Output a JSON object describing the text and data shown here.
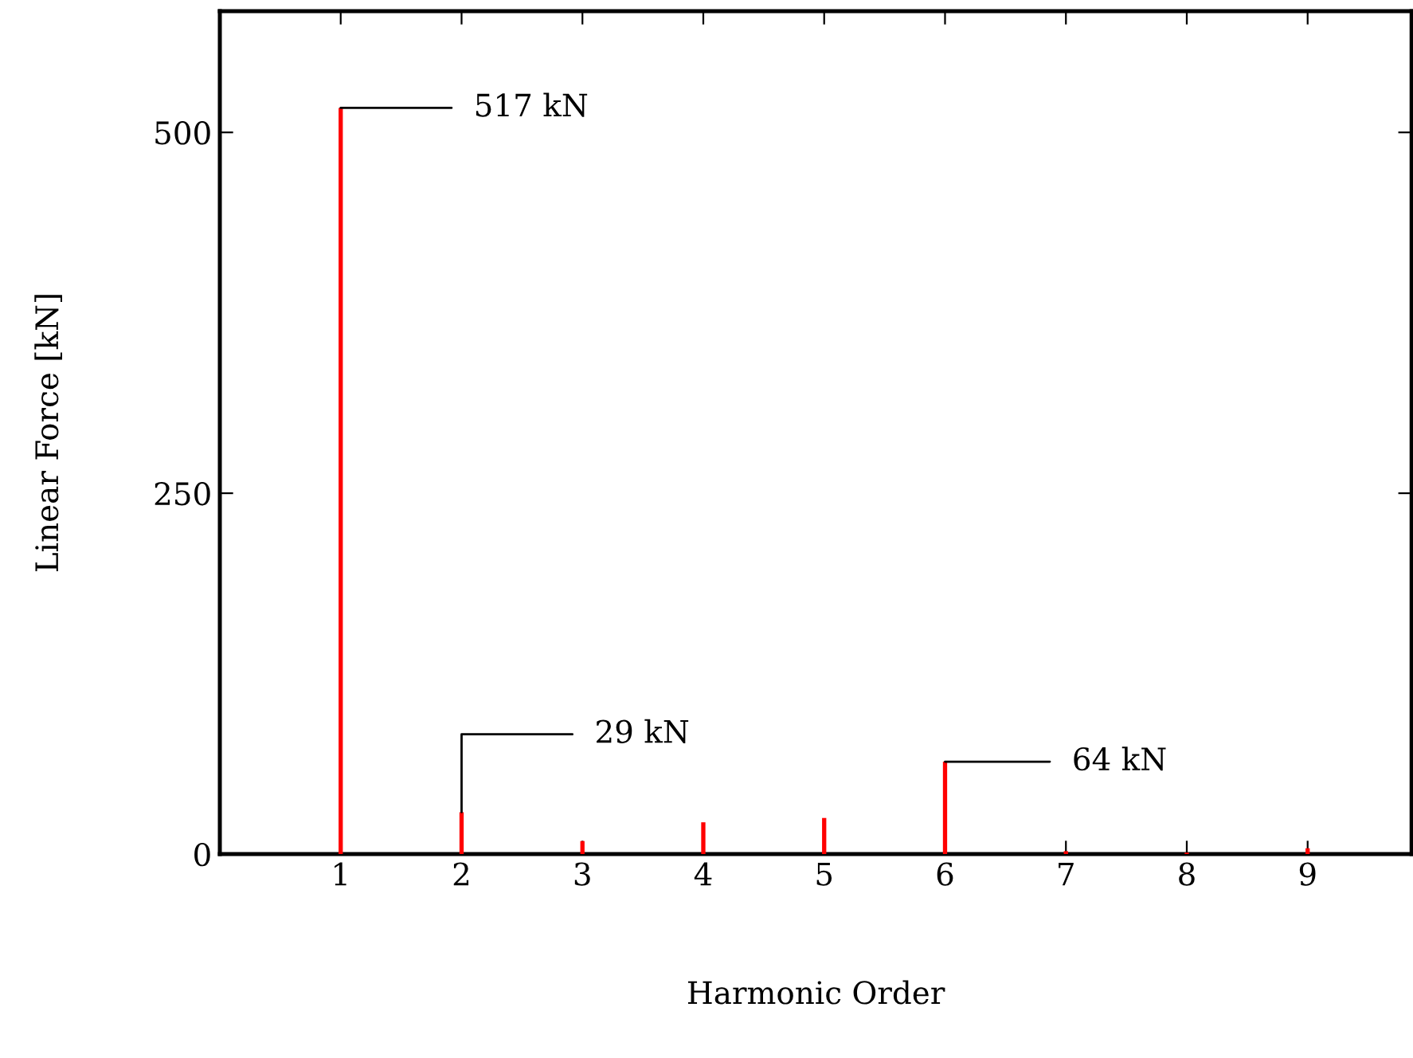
{
  "chart_data": {
    "type": "bar",
    "xlabel": "Harmonic Order",
    "ylabel": "Linear Force [kN]",
    "x": [
      1,
      2,
      3,
      4,
      5,
      6,
      7,
      8,
      9
    ],
    "values": [
      517,
      29,
      9,
      22,
      25,
      64,
      2,
      1,
      4
    ],
    "color": "#ff0000",
    "xlim": [
      0,
      9.86
    ],
    "ylim": [
      0,
      584
    ],
    "xticks": [
      1,
      2,
      3,
      4,
      5,
      6,
      7,
      8,
      9
    ],
    "yticks": [
      0,
      250,
      500
    ],
    "annotations": [
      {
        "text": "517 kN",
        "x": 1,
        "y": 517
      },
      {
        "text": "29 kN",
        "x": 2,
        "y": 29
      },
      {
        "text": "64 kN",
        "x": 6,
        "y": 64
      }
    ],
    "grid": false
  }
}
